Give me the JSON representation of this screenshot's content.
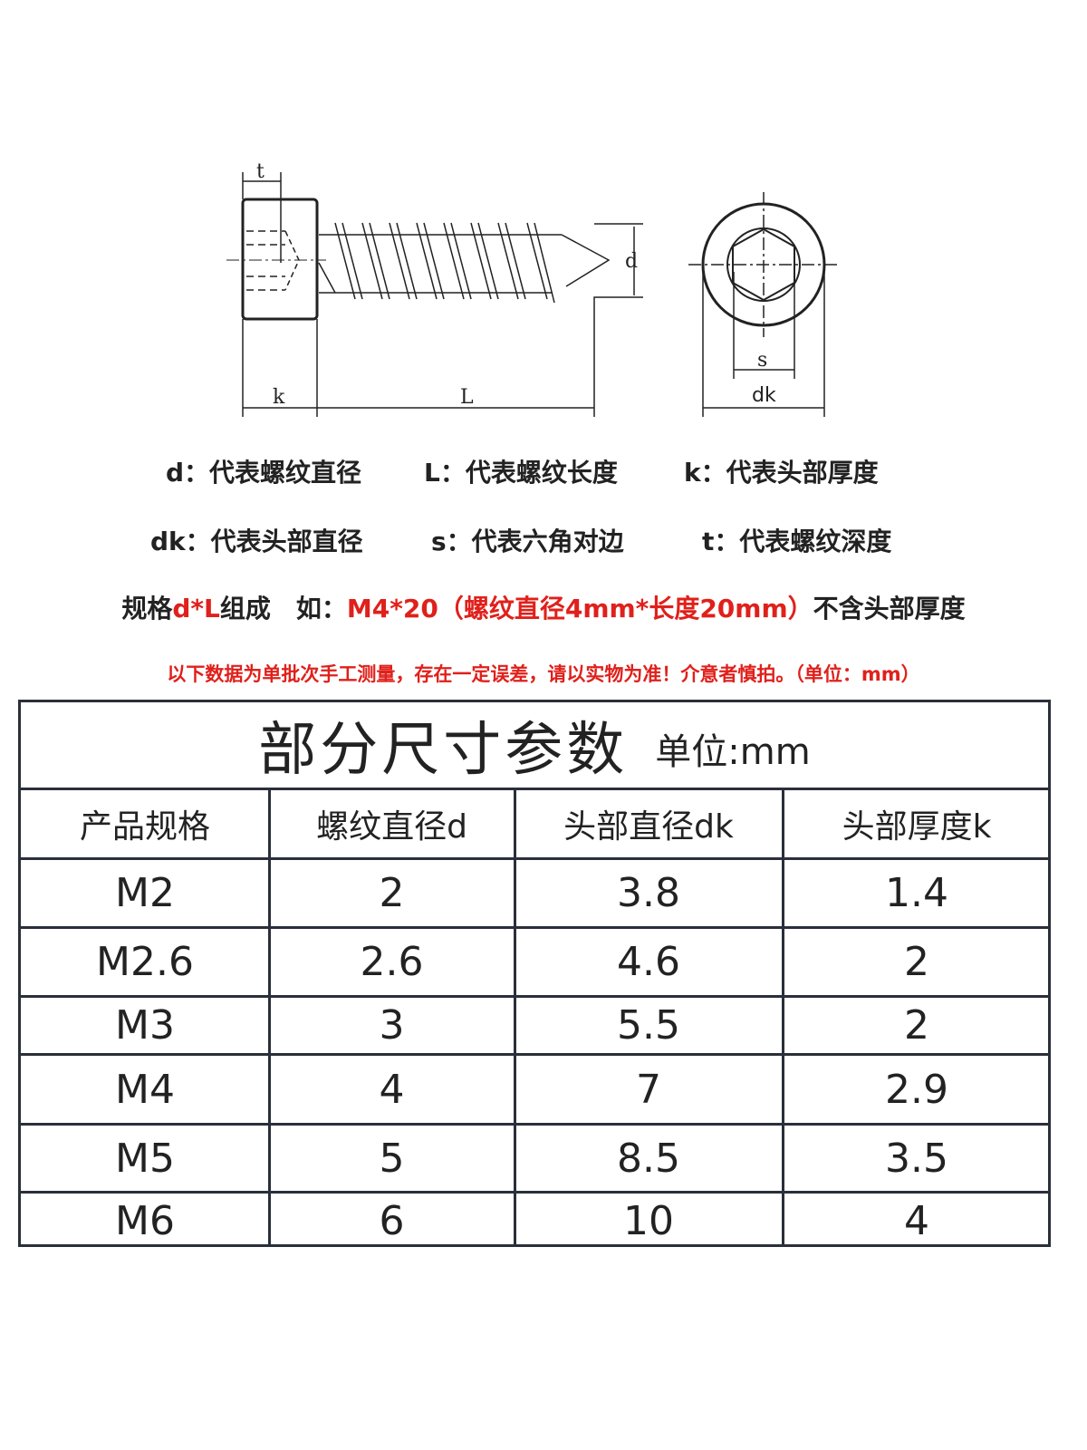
{
  "diagram": {
    "labels": {
      "t": "t",
      "k": "k",
      "L": "L",
      "d": "d",
      "s": "s",
      "dk": "dk"
    }
  },
  "legend": [
    {
      "key": "d",
      "text": "：代表螺纹直径"
    },
    {
      "key": "L",
      "text": "：代表螺纹长度"
    },
    {
      "key": "k",
      "text": "：代表头部厚度"
    },
    {
      "key": "dk",
      "text": "：代表头部直径"
    },
    {
      "key": "s",
      "text": "：代表六角对边"
    },
    {
      "key": "t",
      "text": "：代表螺纹深度"
    }
  ],
  "spec_line": {
    "prefix": "规格",
    "formula": "d*L",
    "mid": "组成　如：",
    "example": "M4*20（螺纹直径4mm*长度20mm）",
    "suffix": "不含头部厚度"
  },
  "note": "以下数据为单批次手工测量，存在一定误差，请以实物为准！介意者慎拍。（单位：mm）",
  "colors": {
    "accent": "#e0201b",
    "border": "#2a2f3a"
  },
  "table": {
    "title": "部分尺寸参数",
    "unit": "单位:mm",
    "headers": [
      "产品规格",
      "螺纹直径d",
      "头部直径dk",
      "头部厚度k"
    ],
    "rows": [
      [
        "M2",
        "2",
        "3.8",
        "1.4"
      ],
      [
        "M2.6",
        "2.6",
        "4.6",
        "2"
      ],
      [
        "M3",
        "3",
        "5.5",
        "2"
      ],
      [
        "M4",
        "4",
        "7",
        "2.9"
      ],
      [
        "M5",
        "5",
        "8.5",
        "3.5"
      ],
      [
        "M6",
        "6",
        "10",
        "4"
      ]
    ]
  }
}
